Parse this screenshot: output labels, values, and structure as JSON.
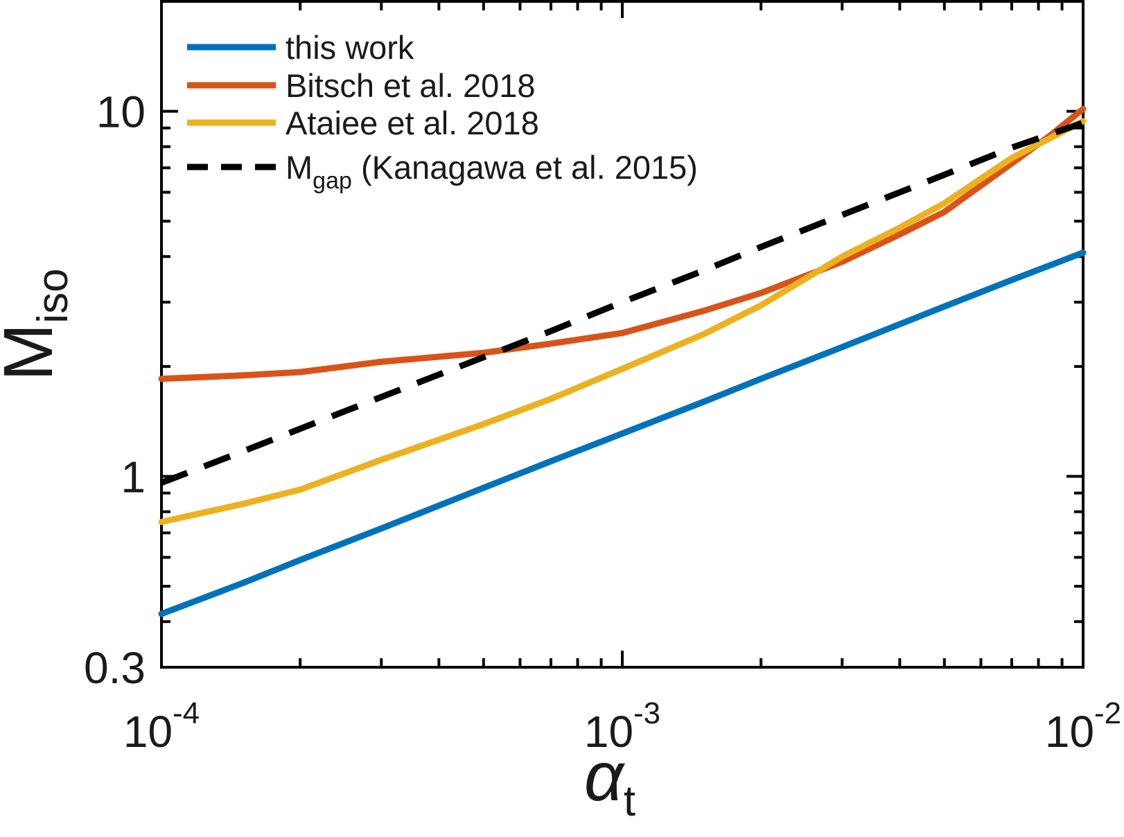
{
  "chart_data": {
    "type": "line",
    "title": "",
    "x_scale": "log",
    "y_scale": "log",
    "xlim": [
      0.0001,
      0.01
    ],
    "ylim": [
      0.3,
      20
    ],
    "grid": false,
    "xlabel": {
      "base": "α",
      "sub": "t"
    },
    "ylabel": {
      "base": "M",
      "sub": "iso"
    },
    "x_ticks": [
      {
        "value": 0.0001,
        "base": "10",
        "exp": "-4"
      },
      {
        "value": 0.001,
        "base": "10",
        "exp": "-3"
      },
      {
        "value": 0.01,
        "base": "10",
        "exp": "-2"
      }
    ],
    "y_ticks": [
      {
        "value": 0.3,
        "label": "0.3"
      },
      {
        "value": 1,
        "label": "1"
      },
      {
        "value": 10,
        "label": "10"
      }
    ],
    "legend": {
      "position": "upper-left",
      "frame": false
    },
    "series": [
      {
        "name": "this work",
        "color": "#0072BD",
        "style": "solid",
        "points": [
          [
            0.0001,
            0.42
          ],
          [
            0.00015,
            0.51
          ],
          [
            0.0002,
            0.59
          ],
          [
            0.0003,
            0.72
          ],
          [
            0.0005,
            0.93
          ],
          [
            0.0007,
            1.1
          ],
          [
            0.001,
            1.31
          ],
          [
            0.0015,
            1.6
          ],
          [
            0.002,
            1.85
          ],
          [
            0.003,
            2.26
          ],
          [
            0.005,
            2.92
          ],
          [
            0.007,
            3.45
          ],
          [
            0.01,
            4.1
          ]
        ]
      },
      {
        "name": "Bitsch et al. 2018",
        "color": "#D95319",
        "style": "solid",
        "points": [
          [
            0.0001,
            1.85
          ],
          [
            0.00015,
            1.89
          ],
          [
            0.0002,
            1.93
          ],
          [
            0.0003,
            2.06
          ],
          [
            0.0005,
            2.18
          ],
          [
            0.0007,
            2.31
          ],
          [
            0.001,
            2.47
          ],
          [
            0.0015,
            2.84
          ],
          [
            0.002,
            3.18
          ],
          [
            0.003,
            3.87
          ],
          [
            0.004,
            4.6
          ],
          [
            0.005,
            5.3
          ],
          [
            0.007,
            7.2
          ],
          [
            0.0085,
            8.6
          ],
          [
            0.01,
            10.15
          ]
        ]
      },
      {
        "name": "Ataiee et al. 2018",
        "color": "#EDB120",
        "style": "solid",
        "points": [
          [
            0.0001,
            0.75
          ],
          [
            0.00015,
            0.84
          ],
          [
            0.0002,
            0.92
          ],
          [
            0.0003,
            1.11
          ],
          [
            0.0005,
            1.39
          ],
          [
            0.0007,
            1.63
          ],
          [
            0.001,
            1.97
          ],
          [
            0.0015,
            2.45
          ],
          [
            0.002,
            2.94
          ],
          [
            0.003,
            4.0
          ],
          [
            0.004,
            4.8
          ],
          [
            0.005,
            5.6
          ],
          [
            0.007,
            7.45
          ],
          [
            0.01,
            9.4
          ]
        ]
      },
      {
        "name": "M_gap (Kanagawa et al. 2015)",
        "label_rich": {
          "base": "M",
          "sub": "gap",
          "suffix": " (Kanagawa et al. 2015)"
        },
        "color": "#000000",
        "style": "dashed",
        "points": [
          [
            0.0001,
            0.96
          ],
          [
            0.00015,
            1.17
          ],
          [
            0.0002,
            1.35
          ],
          [
            0.0003,
            1.65
          ],
          [
            0.0005,
            2.12
          ],
          [
            0.0007,
            2.5
          ],
          [
            0.001,
            3.0
          ],
          [
            0.0015,
            3.66
          ],
          [
            0.002,
            4.25
          ],
          [
            0.003,
            5.2
          ],
          [
            0.005,
            6.7
          ],
          [
            0.007,
            7.95
          ],
          [
            0.01,
            9.3
          ]
        ]
      }
    ]
  }
}
